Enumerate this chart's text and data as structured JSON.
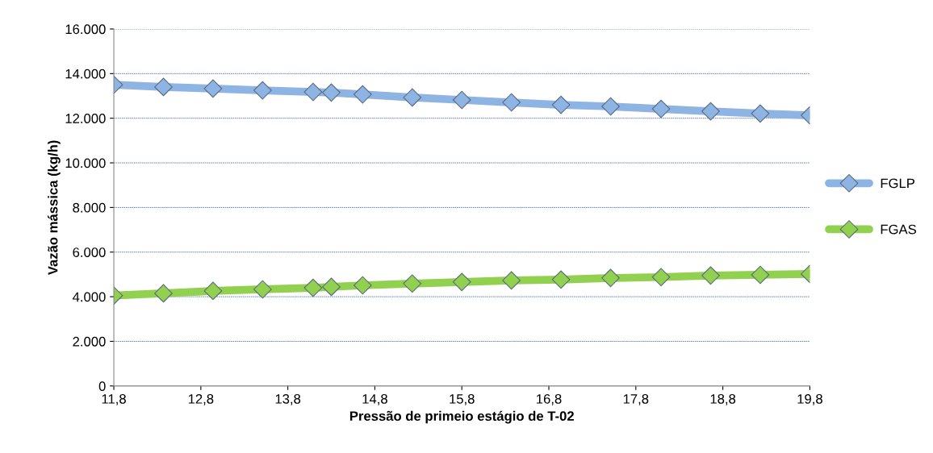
{
  "chart_data": {
    "type": "line",
    "xlabel": "Pressão de primeio estágio de T-02",
    "ylabel": "Vazão mássica (kg/h)",
    "xlim": [
      11.8,
      19.8
    ],
    "xticks": [
      {
        "value": 11.8,
        "label": "11,8"
      },
      {
        "value": 12.8,
        "label": "12,8"
      },
      {
        "value": 13.8,
        "label": "13,8"
      },
      {
        "value": 14.8,
        "label": "14,8"
      },
      {
        "value": 15.8,
        "label": "15,8"
      },
      {
        "value": 16.8,
        "label": "16,8"
      },
      {
        "value": 17.8,
        "label": "17,8"
      },
      {
        "value": 18.8,
        "label": "18,8"
      },
      {
        "value": 19.8,
        "label": "19,8"
      }
    ],
    "ylim": [
      0,
      16000
    ],
    "yticks": [
      0,
      {
        "value": 2000,
        "label": "2.000"
      },
      {
        "value": 4000,
        "label": "4.000"
      },
      {
        "value": 6000,
        "label": "6.000"
      },
      {
        "value": 8000,
        "label": "8.000"
      },
      {
        "value": 10000,
        "label": "10.000"
      },
      {
        "value": 12000,
        "label": "12.000"
      },
      {
        "value": 14000,
        "label": "14.000"
      },
      {
        "value": 16000,
        "label": "16.000"
      }
    ],
    "x": [
      11.8,
      12.37,
      12.94,
      13.51,
      14.09,
      14.3,
      14.66,
      15.23,
      15.8,
      16.37,
      16.94,
      17.51,
      18.09,
      18.66,
      19.23,
      19.8
    ],
    "series": [
      {
        "name": "FGLP",
        "color": "#8eb4e3",
        "values": [
          13500,
          13400,
          13330,
          13250,
          13180,
          13150,
          13070,
          12930,
          12820,
          12710,
          12600,
          12530,
          12420,
          12310,
          12210,
          12130
        ]
      },
      {
        "name": "FGAS",
        "color": "#92d050",
        "values": [
          4050,
          4150,
          4260,
          4330,
          4400,
          4440,
          4510,
          4590,
          4660,
          4730,
          4770,
          4840,
          4880,
          4950,
          4980,
          5020
        ]
      }
    ],
    "grid": "y",
    "legend": "right",
    "marker": "diamond",
    "line_style": "solid"
  }
}
